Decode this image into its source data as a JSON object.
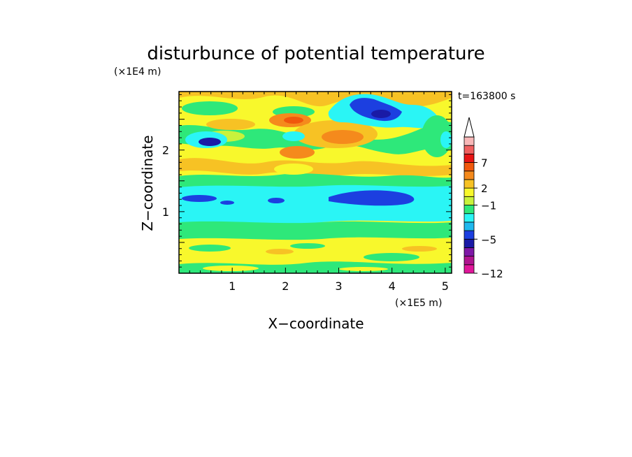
{
  "chart_data": {
    "type": "heatmap",
    "title": "disturbunce of potential temperature",
    "xlabel": "X−coordinate",
    "ylabel": "Z−coordinate",
    "x_unit": "(×1E5 m)",
    "y_unit": "(×1E4 m)",
    "annotation": "t=163800 s",
    "xlim": [
      0,
      5.12
    ],
    "ylim": [
      0,
      2.95
    ],
    "x_ticks": [
      "1",
      "2",
      "3",
      "4",
      "5"
    ],
    "y_ticks": [
      "1",
      "2"
    ],
    "colorbar": {
      "colors": [
        "#e0169a",
        "#b0148f",
        "#7e18a6",
        "#1a1aa6",
        "#1c3fe0",
        "#1fb8ee",
        "#2af5f5",
        "#2ee87a",
        "#c8f23c",
        "#f8f82c",
        "#f7c224",
        "#f58a1c",
        "#f0580c",
        "#e81414",
        "#f06060",
        "#f8b8b8"
      ],
      "tick_labels": [
        "7",
        "2",
        "−1",
        "−5",
        "−12"
      ],
      "extend_max": true
    },
    "bands": [
      {
        "z": [
          0.0,
          0.08
        ],
        "level": "green"
      },
      {
        "z": [
          0.08,
          0.75
        ],
        "level": "yellow"
      },
      {
        "z": [
          0.75,
          0.9
        ],
        "level": "green"
      },
      {
        "z": [
          0.9,
          1.3
        ],
        "level": "cyan"
      },
      {
        "z": [
          1.3,
          1.45
        ],
        "level": "green"
      },
      {
        "z": [
          1.45,
          2.95
        ],
        "level": "yellow/orange/green mixed"
      }
    ],
    "features": [
      {
        "x": 3.8,
        "z": 2.6,
        "value": "-5",
        "note": "cold anomaly near top"
      },
      {
        "x": 3.8,
        "z": 1.25,
        "value": "-5",
        "note": "cold streak in cyan layer"
      },
      {
        "x": 0.6,
        "z": 2.15,
        "value": "-5",
        "note": "small cold cell"
      },
      {
        "x": 2.1,
        "z": 2.5,
        "value": "2",
        "note": "warm cell"
      },
      {
        "x": 3.3,
        "z": 2.1,
        "value": "2",
        "note": "warm band"
      }
    ]
  }
}
